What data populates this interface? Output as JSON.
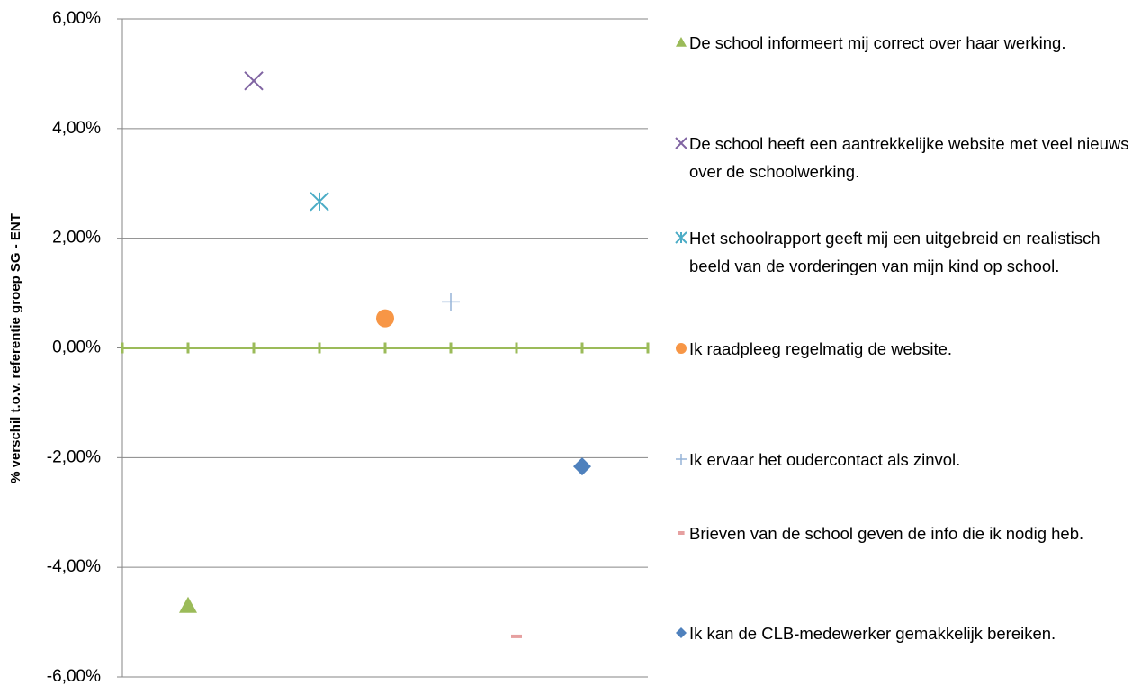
{
  "chart_data": {
    "type": "scatter",
    "y_label": "% verschil t.o.v. referentie groep SG - ENT",
    "xlim": [
      0,
      8
    ],
    "xticks": [
      0,
      1,
      2,
      3,
      4,
      5,
      6,
      7,
      8
    ],
    "ylim": [
      -6,
      6
    ],
    "yticks": [
      {
        "value": -6,
        "label": "-6,00%"
      },
      {
        "value": -4,
        "label": "-4,00%"
      },
      {
        "value": -2,
        "label": "-2,00%"
      },
      {
        "value": 0,
        "label": "0,00%"
      },
      {
        "value": 2,
        "label": "2,00%"
      },
      {
        "value": 4,
        "label": "4,00%"
      },
      {
        "value": 6,
        "label": "6,00%"
      }
    ],
    "grid": true,
    "series": [
      {
        "name": "De school informeert mij correct over haar werking.",
        "color": "#9bbb59",
        "marker": "triangle",
        "x": [
          1
        ],
        "values": [
          -4.7
        ]
      },
      {
        "name": "De school heeft een aantrekkelijke website met veel nieuws over de schoolwerking.",
        "color": "#8064a2",
        "marker": "x",
        "x": [
          2
        ],
        "values": [
          4.87
        ]
      },
      {
        "name": "Het schoolrapport geeft mij een uitgebreid en realistisch beeld van de vorderingen van mijn kind op school.",
        "color": "#4bacc6",
        "marker": "asterisk",
        "x": [
          3
        ],
        "values": [
          2.67
        ]
      },
      {
        "name": "Ik raadpleeg regelmatig de website.",
        "color": "#f79646",
        "marker": "circle",
        "x": [
          4
        ],
        "values": [
          0.54
        ]
      },
      {
        "name": "Ik ervaar het oudercontact als zinvol.",
        "color": "#95b3d7",
        "marker": "plus",
        "x": [
          5
        ],
        "values": [
          0.84
        ]
      },
      {
        "name": "Brieven van de school geven de info die ik nodig heb.",
        "color": "#e6a0a0",
        "marker": "dash",
        "x": [
          6
        ],
        "values": [
          -5.26
        ]
      },
      {
        "name": "Ik kan de CLB-medewerker gemakkelijk bereiken.",
        "color": "#4f81bd",
        "marker": "diamond",
        "x": [
          7
        ],
        "values": [
          -2.16
        ]
      }
    ]
  }
}
